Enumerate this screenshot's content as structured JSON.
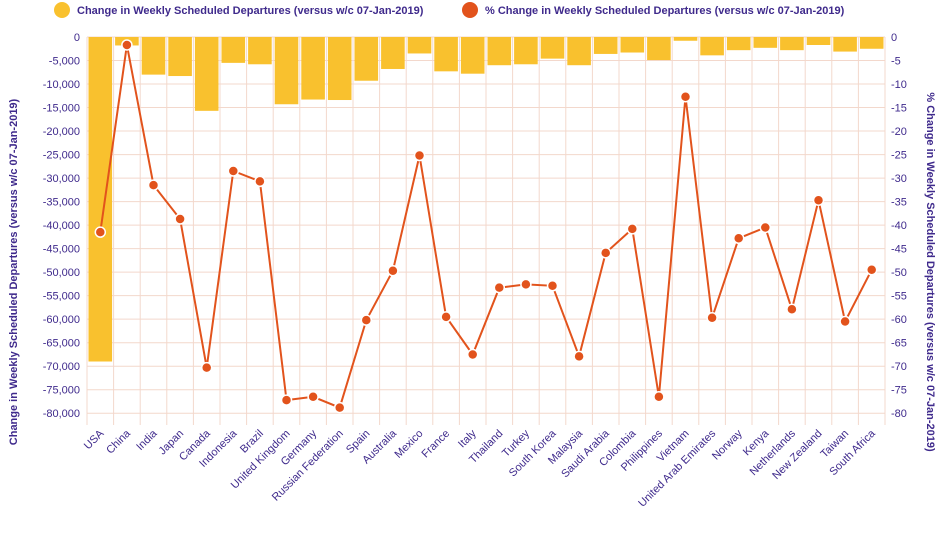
{
  "chart_data": {
    "type": "bar+line",
    "categories": [
      "USA",
      "China",
      "India",
      "Japan",
      "Canada",
      "Indonesia",
      "Brazil",
      "United Kingdom",
      "Germany",
      "Russian Federation",
      "Spain",
      "Australia",
      "Mexico",
      "France",
      "Italy",
      "Thailand",
      "Turkey",
      "South Korea",
      "Malaysia",
      "Saudi Arabia",
      "Colombia",
      "Philippines",
      "Vietnam",
      "United Arab Emirates",
      "Norway",
      "Kenya",
      "Netherlands",
      "New Zealand",
      "Taiwan",
      "South Africa"
    ],
    "series": [
      {
        "name": "Change in Weekly Scheduled Departures (versus w/c 07-Jan-2019)",
        "type": "bar",
        "axis": "left",
        "color": "#f9c12e",
        "values": [
          -69000,
          -1800,
          -8000,
          -8300,
          -15700,
          -5500,
          -5800,
          -14300,
          -13300,
          -13400,
          -9300,
          -6800,
          -3500,
          -7300,
          -7800,
          -6000,
          -5800,
          -4600,
          -6000,
          -3600,
          -3300,
          -4900,
          -800,
          -3900,
          -2800,
          -2300,
          -2800,
          -1700,
          -3100,
          -2500
        ]
      },
      {
        "name": "% Change in Weekly Scheduled Departures (versus w/c 07-Jan-2019)",
        "type": "line",
        "axis": "right",
        "color": "#e2531c",
        "values": [
          -41.5,
          -1.7,
          -31.5,
          -38.7,
          -70.3,
          -28.5,
          -30.7,
          -77.2,
          -76.5,
          -78.8,
          -60.2,
          -49.7,
          -25.2,
          -59.5,
          -67.5,
          -53.3,
          -52.6,
          -52.9,
          -67.9,
          -45.9,
          -40.8,
          -76.5,
          -12.7,
          -59.7,
          -42.8,
          -40.5,
          -57.9,
          -34.7,
          -60.5,
          -49.5
        ]
      }
    ],
    "y_left": {
      "label": "Change in Weekly Scheduled Departures (versus w/c 07-Jan-2019)",
      "ylim": [
        -82500,
        0
      ],
      "ticks": [
        0,
        -5000,
        -10000,
        -15000,
        -20000,
        -25000,
        -30000,
        -35000,
        -40000,
        -45000,
        -50000,
        -55000,
        -60000,
        -65000,
        -70000,
        -75000,
        -80000
      ],
      "tick_labels": [
        "0",
        "-5,000",
        "-10,000",
        "-15,000",
        "-20,000",
        "-25,000",
        "-30,000",
        "-35,000",
        "-40,000",
        "-45,000",
        "-50,000",
        "-55,000",
        "-60,000",
        "-65,000",
        "-70,000",
        "-75,000",
        "-80,000"
      ]
    },
    "y_right": {
      "label": "% Change in Weekly Scheduled Departures (versus w/c 07-Jan-2019)",
      "ylim": [
        -82.5,
        0
      ],
      "ticks": [
        0,
        -5,
        -10,
        -15,
        -20,
        -25,
        -30,
        -35,
        -40,
        -45,
        -50,
        -55,
        -60,
        -65,
        -70,
        -75,
        -80
      ],
      "tick_labels": [
        "0",
        "-5",
        "-10",
        "-15",
        "-20",
        "-25",
        "-30",
        "-35",
        "-40",
        "-45",
        "-50",
        "-55",
        "-60",
        "-65",
        "-70",
        "-75",
        "-80"
      ]
    },
    "grid": true,
    "legend_position": "top"
  }
}
